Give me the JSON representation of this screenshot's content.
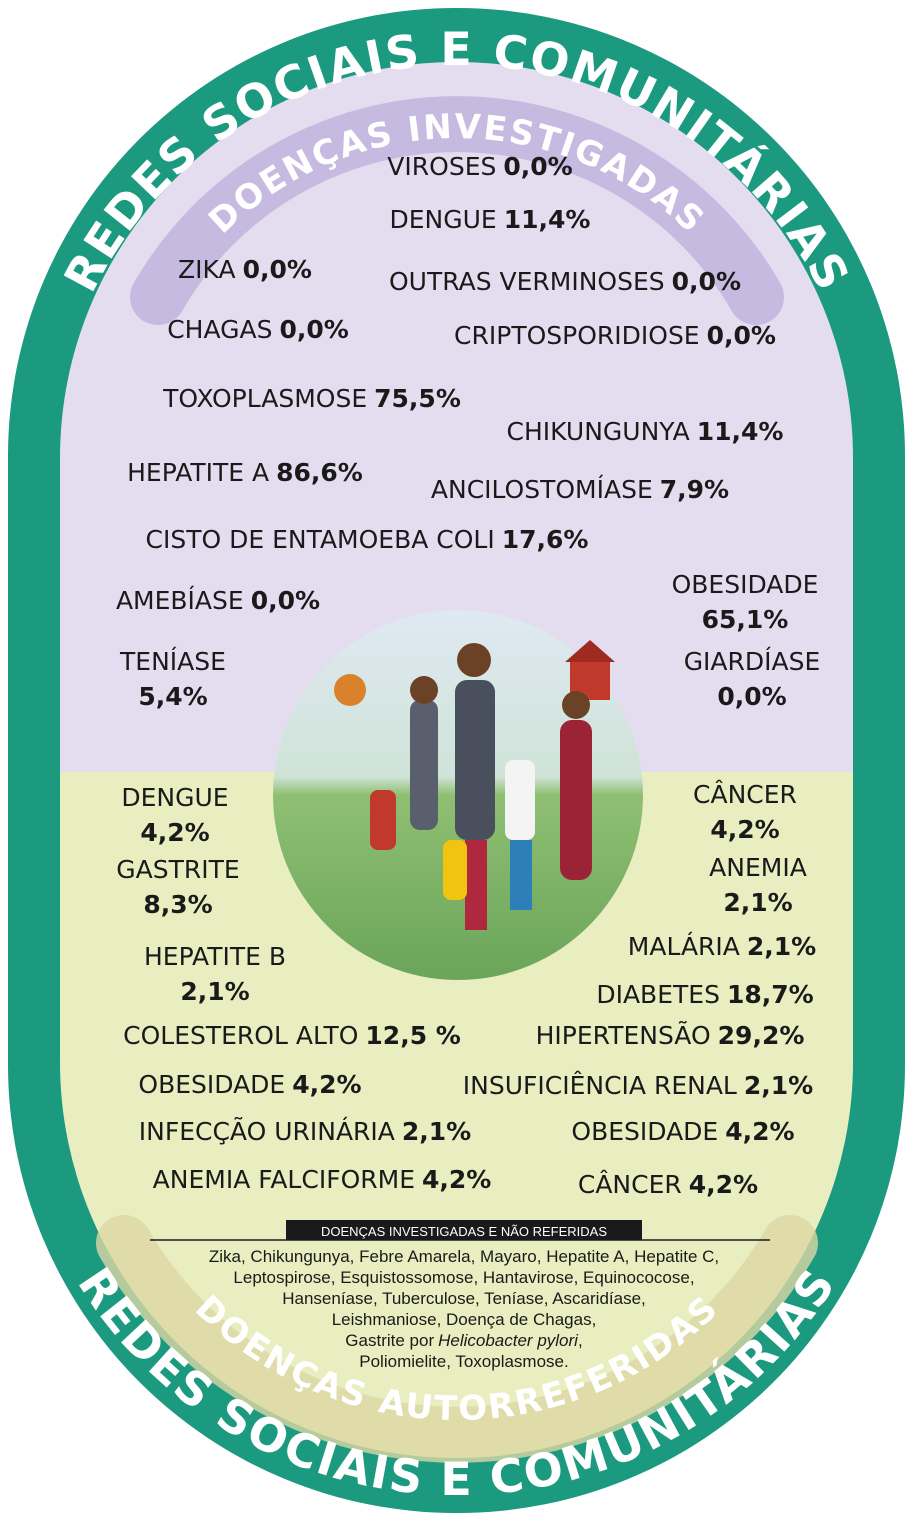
{
  "header": {
    "title": "REDES SOCIAIS E COMUNITÁRIAS",
    "subtitle": "DOENÇAS INVESTIGADAS"
  },
  "investigated": [
    {
      "name": "VIROSES",
      "value": "0,0%"
    },
    {
      "name": "DENGUE",
      "value": "11,4%"
    },
    {
      "name": "ZIKA",
      "value": "0,0%"
    },
    {
      "name": "OUTRAS VERMINOSES",
      "value": "0,0%"
    },
    {
      "name": "CHAGAS",
      "value": "0,0%"
    },
    {
      "name": "CRIPTOSPORIDIOSE",
      "value": "0,0%"
    },
    {
      "name": "TOXOPLASMOSE",
      "value": "75,5%"
    },
    {
      "name": "CHIKUNGUNYA",
      "value": "11,4%"
    },
    {
      "name": "HEPATITE A",
      "value": "86,6%"
    },
    {
      "name": "ANCILOSTOMÍASE",
      "value": "7,9%"
    },
    {
      "name": "CISTO DE ENTAMOEBA COLI",
      "value": "17,6%"
    },
    {
      "name": "AMEBÍASE",
      "value": "0,0%"
    },
    {
      "name": "OBESIDADE",
      "value": "65,1%"
    },
    {
      "name": "TENÍASE",
      "value": "5,4%"
    },
    {
      "name": "GIARDÍASE",
      "value": "0,0%"
    }
  ],
  "self_reported": [
    {
      "name": "DENGUE",
      "value": "4,2%"
    },
    {
      "name": "CÂNCER",
      "value": "4,2%"
    },
    {
      "name": "GASTRITE",
      "value": "8,3%"
    },
    {
      "name": "ANEMIA",
      "value": "2,1%"
    },
    {
      "name": "HEPATITE B",
      "value": "2,1%"
    },
    {
      "name": "MALÁRIA",
      "value": "2,1%"
    },
    {
      "name": "DIABETES",
      "value": "18,7%"
    },
    {
      "name": "COLESTEROL ALTO",
      "value": "12,5 %"
    },
    {
      "name": "HIPERTENSÃO",
      "value": "29,2%"
    },
    {
      "name": "OBESIDADE",
      "value": "4,2%"
    },
    {
      "name": "INSUFICIÊNCIA RENAL",
      "value": "2,1%"
    },
    {
      "name": "INFECÇÃO URINÁRIA",
      "value": "2,1%"
    },
    {
      "name": "OBESIDADE",
      "value": "4,2%"
    },
    {
      "name": "ANEMIA FALCIFORME",
      "value": "4,2%"
    },
    {
      "name": "CÂNCER",
      "value": "4,2%"
    }
  ],
  "note": {
    "title": "DOENÇAS INVESTIGADAS E NÃO REFERIDAS",
    "lines": [
      "Zika, Chikungunya, Febre Amarela, Mayaro, Hepatite A, Hepatite C,",
      "Leptospirose, Esquistossomose, Hantavirose, Equinococose,",
      "Hanseníase, Tuberculose, Teníase, Ascaridíase,",
      "Leishmaniose, Doença de Chagas,"
    ],
    "italic_line": {
      "before": "Gastrite por",
      "italic": "Helicobacter pylori",
      "after": ","
    },
    "last_line": "Poliomielite, Toxoplasmose."
  },
  "footer": {
    "title": "REDES SOCIAIS E COMUNITÁRIAS",
    "subtitle": "DOENÇAS AUTORREFERIDAS"
  }
}
